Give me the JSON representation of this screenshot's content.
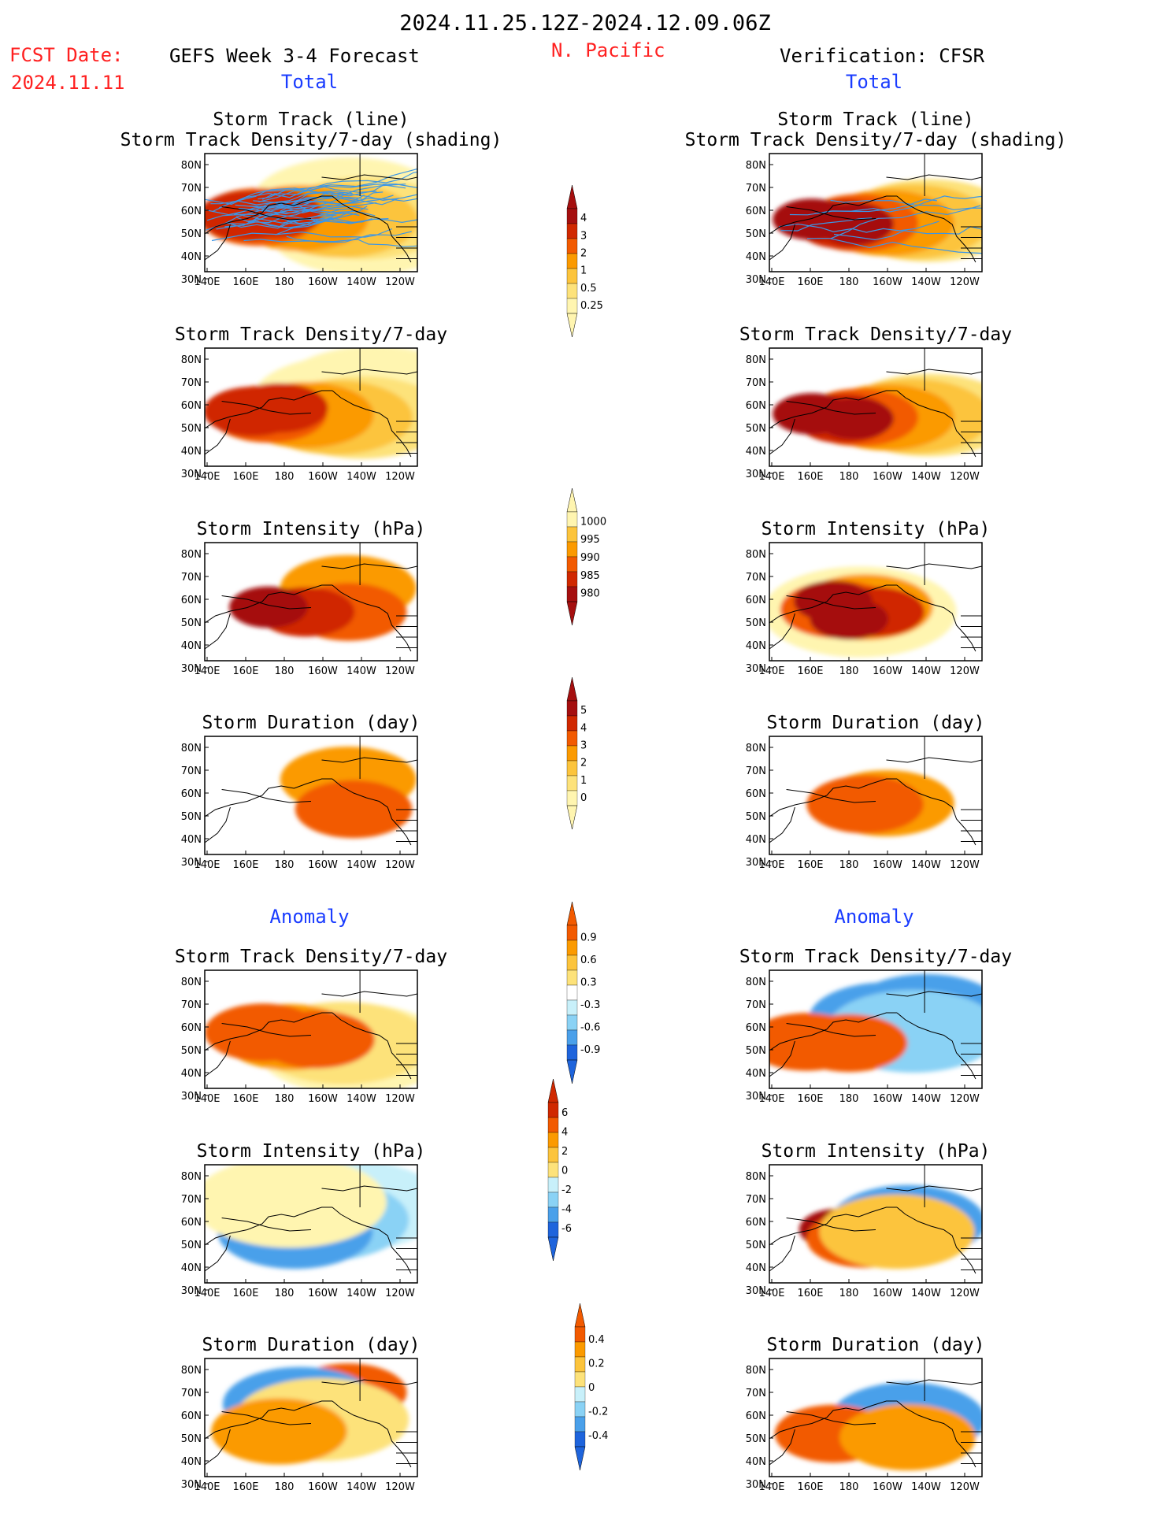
{
  "header": {
    "date_range": "2024.11.25.12Z-2024.12.09.06Z",
    "fcst_label": "FCST Date:",
    "fcst_date": "2024.11.11",
    "model": "GEFS Week 3-4 Forecast",
    "region": "N. Pacific",
    "verification": "Verification: CFSR",
    "total_left": "Total",
    "total_right": "Total",
    "anomaly_left": "Anomaly",
    "anomaly_right": "Anomaly"
  },
  "panel_titles": {
    "track_line": "Storm Track (line)",
    "track_density_shading": "Storm Track Density/7-day (shading)",
    "track_density": "Storm Track Density/7-day",
    "intensity": "Storm Intensity (hPa)",
    "duration": "Storm Duration (day)"
  },
  "axes": {
    "x_ticks": [
      "140E",
      "160E",
      "180",
      "160W",
      "140W",
      "120W"
    ],
    "y_ticks": [
      "80N",
      "70N",
      "60N",
      "50N",
      "40N",
      "30N"
    ]
  },
  "colors": {
    "c1": "#fff5b0",
    "c2": "#fde27a",
    "c3": "#fcc43c",
    "c4": "#fb9a00",
    "c5": "#f25a00",
    "c6": "#d02800",
    "c7": "#a50f0f",
    "b1": "#c8f0fa",
    "b2": "#8ad2f5",
    "b3": "#4aa0ea",
    "b4": "#1e64dc",
    "track": "#3c96e6",
    "axis_text": "#000000",
    "title_red": "#ff2020",
    "title_blue": "#1a3cff"
  },
  "chart_data": [
    {
      "type": "heatmap",
      "panel": "GEFS storm track + track density (shading)",
      "xlabel": "",
      "ylabel": "",
      "xlim": [
        "140E",
        "115W"
      ],
      "ylim": [
        "25N",
        "85N"
      ],
      "cells": [
        [
          65,
          50,
          1
        ],
        [
          42,
          56,
          1
        ],
        [
          52,
          56,
          2
        ],
        [
          50,
          47,
          3
        ],
        [
          52,
          32,
          4
        ],
        [
          53,
          16,
          5
        ],
        [
          54,
          12,
          6
        ],
        [
          56,
          22,
          6
        ]
      ]
    },
    {
      "type": "heatmap",
      "panel": "CFSR storm track + track density (shading)",
      "xlabel": "",
      "ylabel": "",
      "xlim": [
        "140E",
        "115W"
      ],
      "ylim": [
        "25N",
        "85N"
      ],
      "cells": [
        [
          50,
          56,
          2
        ],
        [
          49,
          50,
          3
        ],
        [
          48,
          40,
          4
        ],
        [
          48,
          30,
          5
        ],
        [
          47,
          24,
          6
        ],
        [
          51,
          12,
          7
        ],
        [
          47,
          28,
          7
        ]
      ]
    },
    {
      "type": "heatmap",
      "panel": "GEFS storm track density/7-day",
      "cells": [
        [
          70,
          60,
          1
        ],
        [
          62,
          50,
          1
        ],
        [
          48,
          55,
          2
        ],
        [
          48,
          45,
          3
        ],
        [
          50,
          34,
          4
        ],
        [
          51,
          20,
          5
        ],
        [
          53,
          14,
          6
        ],
        [
          56,
          24,
          6
        ]
      ]
    },
    {
      "type": "heatmap",
      "panel": "CFSR storm track density/7-day",
      "cells": [
        [
          50,
          56,
          2
        ],
        [
          49,
          50,
          3
        ],
        [
          48,
          40,
          4
        ],
        [
          48,
          30,
          5
        ],
        [
          47,
          24,
          6
        ],
        [
          51,
          12,
          7
        ],
        [
          47,
          28,
          7
        ]
      ]
    },
    {
      "type": "heatmap",
      "panel": "GEFS storm intensity (hPa)",
      "cells": [
        [
          68,
          50,
          4
        ],
        [
          48,
          50,
          5
        ],
        [
          48,
          34,
          6
        ],
        [
          52,
          20,
          7
        ]
      ]
    },
    {
      "type": "heatmap",
      "panel": "CFSR storm intensity (hPa)",
      "cells": [
        [
          48,
          30,
          1
        ],
        [
          52,
          32,
          4
        ],
        [
          50,
          22,
          5
        ],
        [
          48,
          36,
          6
        ],
        [
          57,
          20,
          7
        ],
        [
          42,
          26,
          7
        ]
      ]
    },
    {
      "type": "heatmap",
      "panel": "GEFS storm duration (day)",
      "cells": [
        [
          70,
          50,
          4
        ],
        [
          45,
          52,
          5
        ]
      ]
    },
    {
      "type": "heatmap",
      "panel": "CFSR storm duration (day)",
      "cells": [
        [
          50,
          40,
          4
        ],
        [
          49,
          32,
          5
        ]
      ]
    },
    {
      "type": "heatmap",
      "panel": "GEFS storm track density anomaly",
      "cells": [
        [
          40,
          52,
          1
        ],
        [
          45,
          48,
          2
        ],
        [
          50,
          28,
          4
        ],
        [
          54,
          18,
          5
        ],
        [
          48,
          38,
          5
        ]
      ]
    },
    {
      "type": "heatmap",
      "panel": "CFSR storm track density anomaly",
      "cells": [
        [
          72,
          55,
          -3
        ],
        [
          65,
          40,
          -3
        ],
        [
          55,
          50,
          -2
        ],
        [
          45,
          26,
          5
        ],
        [
          46,
          10,
          5
        ]
      ]
    },
    {
      "type": "heatmap",
      "panel": "GEFS storm intensity anomaly (hPa)",
      "cells": [
        [
          72,
          50,
          -1
        ],
        [
          60,
          40,
          -2
        ],
        [
          50,
          30,
          -3
        ],
        [
          75,
          28,
          1
        ]
      ]
    },
    {
      "type": "heatmap",
      "panel": "CFSR storm intensity anomaly (hPa)",
      "cells": [
        [
          58,
          48,
          -3
        ],
        [
          52,
          22,
          7
        ],
        [
          44,
          32,
          5
        ],
        [
          50,
          44,
          3
        ]
      ]
    },
    {
      "type": "heatmap",
      "panel": "GEFS storm duration anomaly (day)",
      "cells": [
        [
          78,
          50,
          5
        ],
        [
          68,
          32,
          -3
        ],
        [
          55,
          40,
          2
        ],
        [
          45,
          24,
          4
        ]
      ]
    },
    {
      "type": "heatmap",
      "panel": "CFSR storm duration anomaly (day)",
      "cells": [
        [
          55,
          48,
          -3
        ],
        [
          43,
          20,
          5
        ],
        [
          40,
          48,
          4
        ]
      ]
    }
  ],
  "colorbars": [
    {
      "name": "track density",
      "labels": [
        "4",
        "3",
        "2",
        "1",
        "0.5",
        "0.25"
      ]
    },
    {
      "name": "intensity",
      "labels": [
        "1000",
        "995",
        "990",
        "985",
        "980"
      ]
    },
    {
      "name": "duration",
      "labels": [
        "5",
        "4",
        "3",
        "2",
        "1",
        "0"
      ]
    },
    {
      "name": "track density anomaly",
      "labels": [
        "0.9",
        "0.6",
        "0.3",
        "-0.3",
        "-0.6",
        "-0.9"
      ]
    },
    {
      "name": "intensity anomaly",
      "labels": [
        "6",
        "4",
        "2",
        "0",
        "-2",
        "-4",
        "-6"
      ]
    },
    {
      "name": "duration anomaly",
      "labels": [
        "0.4",
        "0.2",
        "0",
        "-0.2",
        "-0.4"
      ]
    }
  ]
}
